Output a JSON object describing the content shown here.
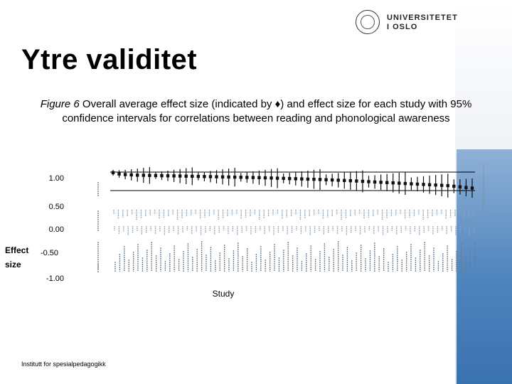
{
  "logo": {
    "line1": "UNIVERSITETET",
    "line2": "I OSLO"
  },
  "slide": {
    "title": "Ytre validitet"
  },
  "caption": {
    "figure_label": "Figure 6",
    "text": " Overall average effect size (indicated by ♦) and effect size for each study with 95% confidence intervals for correlations between reading and phonological awareness"
  },
  "footer": {
    "text": "Institutt for spesialpedagogikk"
  },
  "colors": {
    "band": "#4f84bd",
    "marker": "#111111"
  },
  "chart_data": {
    "type": "scatter",
    "xlabel": "Study",
    "ylabel": "Effect size",
    "y_tick_labels": [
      "1.00",
      "0.50",
      "0.00",
      "-0.50",
      "-1.00"
    ],
    "ylim": [
      -1.0,
      1.0
    ],
    "series": [
      {
        "values": [
          0.99,
          0.97,
          0.96,
          0.955,
          0.95,
          0.948,
          0.946,
          0.944,
          0.942,
          0.94,
          0.938,
          0.936,
          0.934,
          0.932,
          0.93,
          0.928,
          0.926,
          0.924,
          0.922,
          0.92,
          0.918,
          0.916,
          0.914,
          0.912,
          0.91,
          0.907,
          0.904,
          0.901,
          0.898,
          0.895,
          0.892,
          0.889,
          0.886,
          0.883,
          0.88,
          0.876,
          0.872,
          0.868,
          0.864,
          0.86,
          0.855,
          0.85,
          0.845,
          0.84,
          0.835,
          0.83,
          0.825,
          0.82,
          0.815,
          0.81,
          0.805,
          0.8,
          0.795,
          0.79,
          0.785,
          0.78,
          0.77,
          0.76,
          0.75,
          0.74
        ]
      }
    ]
  }
}
